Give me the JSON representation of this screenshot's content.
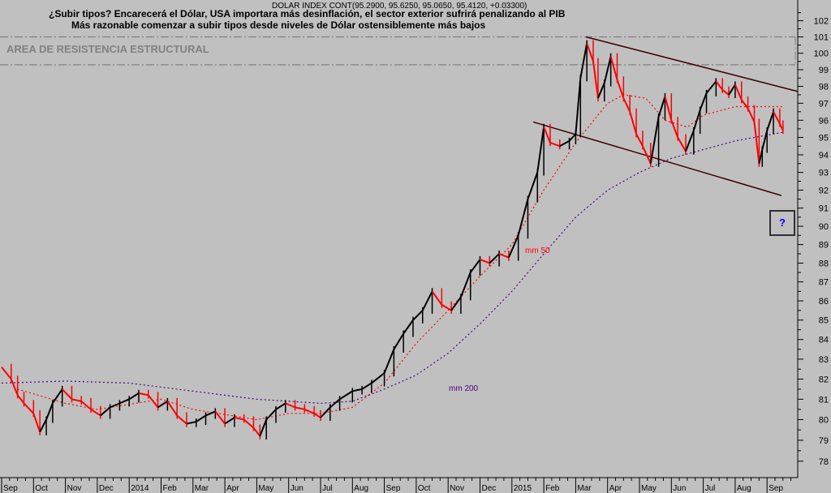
{
  "chart_data": {
    "type": "line",
    "instrument": "DOLAR INDEX CONT(95.2900, 95.6250, 95.0650, 95.4120, +0.03300)",
    "title": "¿Subir tipos? Encarecerá el Dólar, USA importara más desinflación, el sector exterior sufrirá penalizando al PIB",
    "subtitle": "Más razonable comenzar a subir tipos desde niveles de Dólar ostensiblemente más bajos",
    "annotation_resistance": "AREA DE RESISTENCIA ESTRUCTURAL",
    "annotation_question": "?",
    "y_scale": "log",
    "ylim": [
      77.5,
      102.5
    ],
    "y_ticks": [
      78,
      79,
      80,
      81,
      82,
      83,
      84,
      85,
      86,
      87,
      88,
      89,
      90,
      91,
      92,
      93,
      94,
      95,
      96,
      97,
      98,
      99,
      100,
      101,
      102
    ],
    "x_ticks": [
      "Sep",
      "Oct",
      "Nov",
      "Dec",
      "2014",
      "Feb",
      "Mar",
      "Apr",
      "May",
      "Jun",
      "Jul",
      "Aug",
      "Sep",
      "Oct",
      "Nov",
      "Dec",
      "2015",
      "Feb",
      "Mar",
      "Apr",
      "May",
      "Jun",
      "Jul",
      "Aug",
      "Sep"
    ],
    "resistance_zone": [
      99.3,
      101
    ],
    "channel_upper": [
      [
        18.32,
        101.0
      ],
      [
        24.96,
        97.7
      ]
    ],
    "channel_lower": [
      [
        16.67,
        95.9
      ],
      [
        24.45,
        91.7
      ]
    ],
    "colors": {
      "up": "#000000",
      "down": "#ff0000",
      "mm50": "#ff0000",
      "mm200": "#4b0082",
      "channel": "#400000",
      "resistance": "#808080"
    },
    "price": [
      [
        0,
        82.6
      ],
      [
        0.3,
        82
      ],
      [
        0.5,
        81.2
      ],
      [
        0.7,
        80.8
      ],
      [
        1.0,
        80.3
      ],
      [
        1.2,
        79.4
      ],
      [
        1.4,
        80
      ],
      [
        1.6,
        80.8
      ],
      [
        1.9,
        81.5
      ],
      [
        2.2,
        81
      ],
      [
        2.5,
        80.9
      ],
      [
        2.8,
        80.5
      ],
      [
        3.1,
        80.2
      ],
      [
        3.4,
        80.6
      ],
      [
        3.7,
        80.8
      ],
      [
        4.0,
        81
      ],
      [
        4.3,
        81.3
      ],
      [
        4.6,
        81.2
      ],
      [
        4.9,
        80.6
      ],
      [
        5.2,
        80.9
      ],
      [
        5.5,
        80.2
      ],
      [
        5.8,
        79.8
      ],
      [
        6.1,
        79.9
      ],
      [
        6.4,
        80.2
      ],
      [
        6.7,
        80.4
      ],
      [
        7.0,
        79.8
      ],
      [
        7.3,
        80.1
      ],
      [
        7.6,
        80.0
      ],
      [
        7.9,
        79.6
      ],
      [
        8.1,
        79.2
      ],
      [
        8.3,
        80.0
      ],
      [
        8.6,
        80.5
      ],
      [
        8.9,
        80.8
      ],
      [
        9.2,
        80.6
      ],
      [
        9.5,
        80.5
      ],
      [
        9.8,
        80.3
      ],
      [
        10.0,
        80.1
      ],
      [
        10.3,
        80.6
      ],
      [
        10.6,
        81.0
      ],
      [
        11.0,
        81.4
      ],
      [
        11.3,
        81.5
      ],
      [
        11.6,
        81.8
      ],
      [
        12.0,
        82.3
      ],
      [
        12.3,
        83.5
      ],
      [
        12.6,
        84.3
      ],
      [
        12.9,
        85.0
      ],
      [
        13.2,
        85.5
      ],
      [
        13.5,
        86.5
      ],
      [
        13.8,
        85.8
      ],
      [
        14.1,
        85.5
      ],
      [
        14.4,
        86.2
      ],
      [
        14.7,
        87.5
      ],
      [
        15.0,
        88.2
      ],
      [
        15.3,
        88.0
      ],
      [
        15.6,
        88.5
      ],
      [
        15.9,
        88.3
      ],
      [
        16.2,
        89.5
      ],
      [
        16.5,
        91.5
      ],
      [
        16.8,
        93.0
      ],
      [
        17.0,
        95.6
      ],
      [
        17.2,
        94.7
      ],
      [
        17.5,
        94.5
      ],
      [
        17.8,
        94.8
      ],
      [
        18.0,
        95.2
      ],
      [
        18.15,
        98.5
      ],
      [
        18.35,
        100.6
      ],
      [
        18.55,
        99.5
      ],
      [
        18.7,
        97.3
      ],
      [
        18.9,
        98.2
      ],
      [
        19.1,
        99.8
      ],
      [
        19.3,
        98.4
      ],
      [
        19.5,
        97.3
      ],
      [
        19.7,
        96.5
      ],
      [
        19.9,
        95.2
      ],
      [
        20.1,
        94.5
      ],
      [
        20.35,
        93.5
      ],
      [
        20.6,
        96.2
      ],
      [
        20.8,
        97.4
      ],
      [
        21.0,
        96.0
      ],
      [
        21.2,
        95.0
      ],
      [
        21.45,
        94.2
      ],
      [
        21.7,
        95.4
      ],
      [
        21.9,
        96.6
      ],
      [
        22.1,
        97.6
      ],
      [
        22.4,
        98.3
      ],
      [
        22.6,
        97.8
      ],
      [
        22.8,
        97.5
      ],
      [
        23.0,
        98.1
      ],
      [
        23.2,
        97.2
      ],
      [
        23.4,
        96.7
      ],
      [
        23.6,
        95.9
      ],
      [
        23.75,
        93.5
      ],
      [
        23.85,
        94.3
      ],
      [
        24.0,
        95.4
      ],
      [
        24.2,
        96.5
      ],
      [
        24.4,
        95.8
      ],
      [
        24.5,
        95.4
      ]
    ],
    "series": [
      {
        "name": "mm 50",
        "values": [
          [
            0.5,
            81.5
          ],
          [
            2,
            80.8
          ],
          [
            3,
            80.5
          ],
          [
            5,
            81
          ],
          [
            6,
            80.5
          ],
          [
            8,
            80
          ],
          [
            9,
            80.3
          ],
          [
            10,
            80.3
          ],
          [
            11,
            80.6
          ],
          [
            12,
            81.8
          ],
          [
            13,
            83.8
          ],
          [
            14,
            85.5
          ],
          [
            15,
            87.3
          ],
          [
            16,
            89.0
          ],
          [
            17,
            92.0
          ],
          [
            18,
            94.7
          ],
          [
            19,
            97.0
          ],
          [
            19.5,
            97.5
          ],
          [
            20.2,
            97.3
          ],
          [
            20.8,
            96.0
          ],
          [
            21.5,
            95.6
          ],
          [
            22.0,
            96.3
          ],
          [
            23,
            96.8
          ],
          [
            24.5,
            96.8
          ]
        ]
      },
      {
        "name": "mm 200",
        "values": [
          [
            0,
            81.8
          ],
          [
            2,
            81.9
          ],
          [
            4,
            81.8
          ],
          [
            6,
            81.4
          ],
          [
            8,
            81.0
          ],
          [
            10,
            80.8
          ],
          [
            11,
            80.9
          ],
          [
            12,
            81.5
          ],
          [
            13,
            82.2
          ],
          [
            14,
            83.3
          ],
          [
            15,
            84.8
          ],
          [
            16,
            86.5
          ],
          [
            17,
            88.5
          ],
          [
            18,
            90.5
          ],
          [
            19,
            92.0
          ],
          [
            20,
            93.0
          ],
          [
            21,
            93.8
          ],
          [
            22,
            94.3
          ],
          [
            23,
            94.8
          ],
          [
            24.5,
            95.3
          ]
        ]
      }
    ]
  }
}
